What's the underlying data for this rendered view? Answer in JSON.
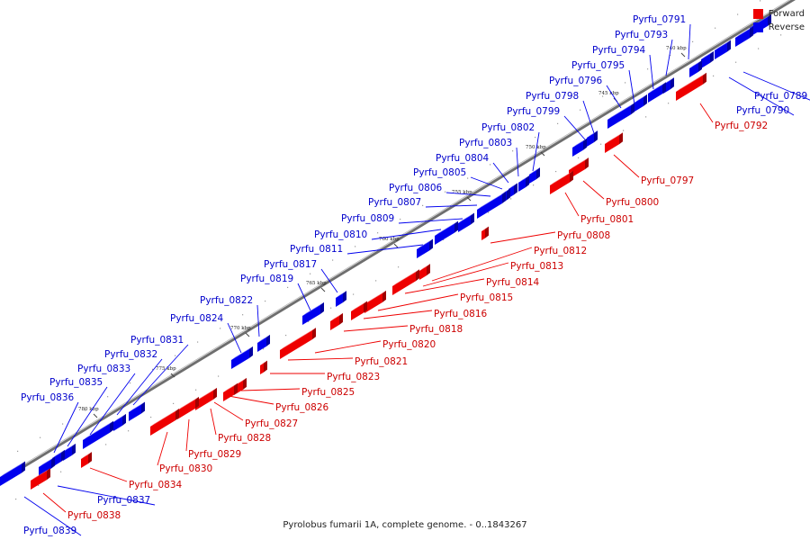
{
  "caption": "Pyrolobus fumarii 1A, complete genome. - 0..1843267",
  "legend": [
    {
      "label": "Forward",
      "color": "#ee0000"
    },
    {
      "label": "Reverse",
      "color": "#0000ee"
    }
  ],
  "colors": {
    "forward": "#ee0000",
    "forward_dark": "#a00000",
    "forward_light": "#ff7070",
    "reverse": "#0000ee",
    "reverse_dark": "#0000a0",
    "reverse_light": "#6a6aff",
    "forward_label": "#cc0000",
    "reverse_label": "#0000cc",
    "leader_forward": "#ee0000",
    "leader_reverse": "#0000ee"
  },
  "ticks": [
    "740 kbp",
    "745 kbp",
    "750 kbp",
    "755 kbp",
    "760 kbp",
    "765 kbp",
    "770 kbp",
    "775 kbp",
    "780 kbp"
  ],
  "reverse_genes": [
    "Pyrfu_0789",
    "Pyrfu_0790",
    "Pyrfu_0791",
    "Pyrfu_0793",
    "Pyrfu_0794",
    "Pyrfu_0795",
    "Pyrfu_0796",
    "Pyrfu_0798",
    "Pyrfu_0799",
    "Pyrfu_0802",
    "Pyrfu_0803",
    "Pyrfu_0804",
    "Pyrfu_0805",
    "Pyrfu_0806",
    "Pyrfu_0807",
    "Pyrfu_0809",
    "Pyrfu_0810",
    "Pyrfu_0811",
    "Pyrfu_0817",
    "Pyrfu_0819",
    "Pyrfu_0822",
    "Pyrfu_0824",
    "Pyrfu_0831",
    "Pyrfu_0832",
    "Pyrfu_0833",
    "Pyrfu_0835",
    "Pyrfu_0836",
    "Pyrfu_0837",
    "Pyrfu_0839"
  ],
  "forward_genes": [
    "Pyrfu_0792",
    "Pyrfu_0797",
    "Pyrfu_0800",
    "Pyrfu_0801",
    "Pyrfu_0808",
    "Pyrfu_0812",
    "Pyrfu_0813",
    "Pyrfu_0814",
    "Pyrfu_0815",
    "Pyrfu_0816",
    "Pyrfu_0818",
    "Pyrfu_0820",
    "Pyrfu_0821",
    "Pyrfu_0823",
    "Pyrfu_0825",
    "Pyrfu_0826",
    "Pyrfu_0827",
    "Pyrfu_0828",
    "Pyrfu_0829",
    "Pyrfu_0830",
    "Pyrfu_0834",
    "Pyrfu_0838"
  ]
}
